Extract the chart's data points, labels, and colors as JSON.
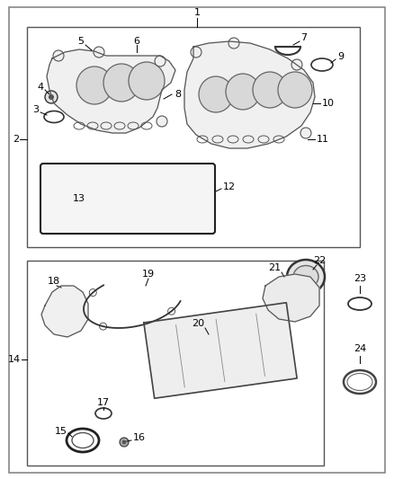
{
  "bg_color": "#ffffff",
  "fig_w": 4.38,
  "fig_h": 5.33,
  "dpi": 100
}
